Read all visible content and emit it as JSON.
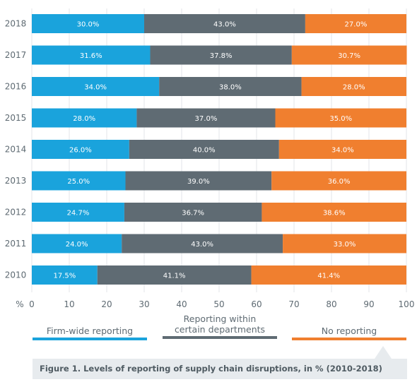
{
  "chart_data": {
    "type": "bar",
    "orientation": "horizontal-stacked-100",
    "categories": [
      "2018",
      "2017",
      "2016",
      "2015",
      "2014",
      "2013",
      "2012",
      "2011",
      "2010"
    ],
    "series": [
      {
        "name": "Firm-wide reporting",
        "color": "#1aa3dc",
        "values": [
          30.0,
          31.6,
          34.0,
          28.0,
          26.0,
          25.0,
          24.7,
          24.0,
          17.5
        ],
        "labels": [
          "30.0%",
          "31.6%",
          "34.0%",
          "28.0%",
          "26.0%",
          "25.0%",
          "24.7%",
          "24.0%",
          "17.5%"
        ]
      },
      {
        "name": "Reporting within\ncertain departments",
        "color": "#5f6b73",
        "values": [
          43.0,
          37.8,
          38.0,
          37.0,
          40.0,
          39.0,
          36.7,
          43.0,
          41.1
        ],
        "labels": [
          "43.0%",
          "37.8%",
          "38.0%",
          "37.0%",
          "40.0%",
          "39.0%",
          "36.7%",
          "43.0%",
          "41.1%"
        ]
      },
      {
        "name": "No reporting",
        "color": "#f07f2f",
        "values": [
          27.0,
          30.7,
          28.0,
          35.0,
          34.0,
          36.0,
          38.6,
          33.0,
          41.4
        ],
        "labels": [
          "27.0%",
          "30.7%",
          "28.0%",
          "35.0%",
          "34.0%",
          "36.0%",
          "38.6%",
          "33.0%",
          "41.4%"
        ]
      }
    ],
    "xlabel": "%",
    "xlim": [
      0,
      100
    ],
    "xticks": [
      "0",
      "10",
      "20",
      "30",
      "40",
      "50",
      "60",
      "70",
      "80",
      "90",
      "100"
    ],
    "grid": true,
    "legend_position": "bottom"
  },
  "caption": "Figure 1. Levels of reporting of supply chain disruptions, in % (2010-2018)"
}
